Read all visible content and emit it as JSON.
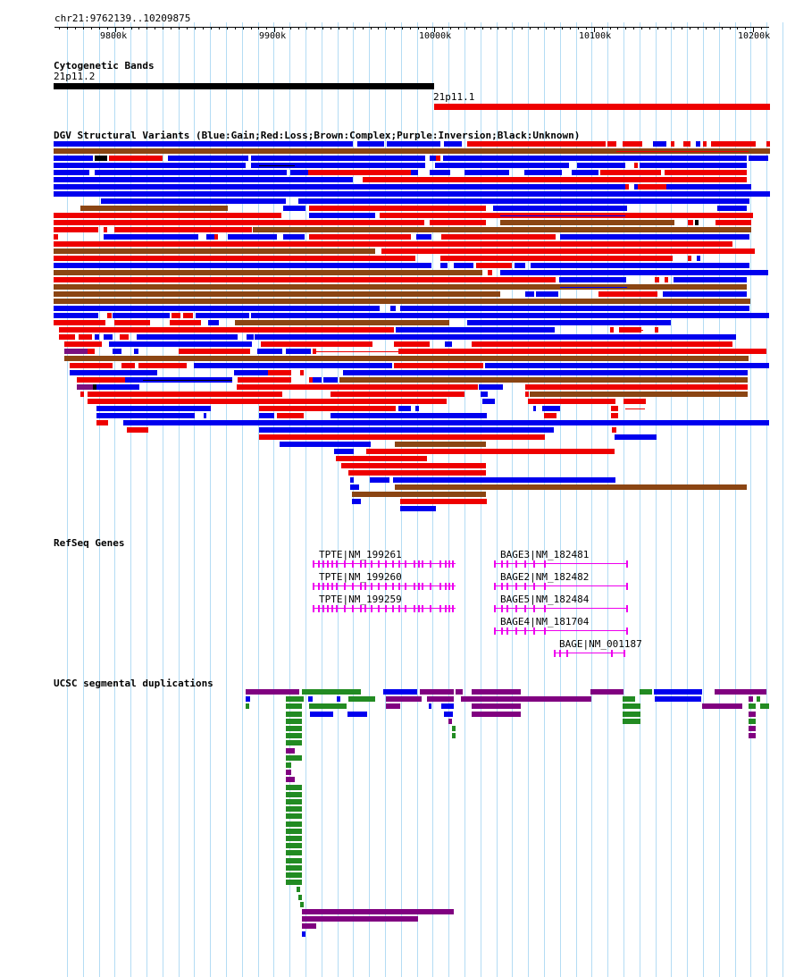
{
  "position_label": "chr21:9762139..10209875",
  "ruler": {
    "ticks": [
      {
        "label": "9800k",
        "value": 9800000
      },
      {
        "label": "9900k",
        "value": 9900000
      },
      {
        "label": "10000k",
        "value": 10000000
      },
      {
        "label": "10100k",
        "value": 10100000
      },
      {
        "label": "10200k",
        "value": 10200000
      }
    ]
  },
  "tracks": {
    "cytoband": {
      "title": "Cytogenetic Bands",
      "bands": [
        {
          "name": "21p11.2",
          "color": "#000000"
        },
        {
          "name": "21p11.1",
          "color": "#ff0000"
        }
      ]
    },
    "dgv": {
      "title": "DGV Structural Variants (Blue:Gain;Red:Loss;Brown:Complex;Purple:Inversion;Black:Unknown)",
      "legend_colors": {
        "gain": "#0000ee",
        "loss": "#ee0000",
        "complex": "#8b4513",
        "inversion": "#7a1080",
        "unknown": "#000000"
      }
    },
    "refseq": {
      "title": "RefSeq Genes",
      "color": "#ee00ee",
      "genes": [
        {
          "label": "TPTE|NM_199261"
        },
        {
          "label": "TPTE|NM_199260"
        },
        {
          "label": "TPTE|NM_199259"
        },
        {
          "label": "BAGE3|NM_182481"
        },
        {
          "label": "BAGE2|NM_182482"
        },
        {
          "label": "BAGE5|NM_182484"
        },
        {
          "label": "BAGE4|NM_181704"
        },
        {
          "label": "BAGE|NM_001187"
        }
      ]
    },
    "segdup": {
      "title": "UCSC segmental duplications",
      "colors": {
        "blue": "#0000ee",
        "green": "#228b22",
        "purple": "#800080"
      }
    }
  }
}
